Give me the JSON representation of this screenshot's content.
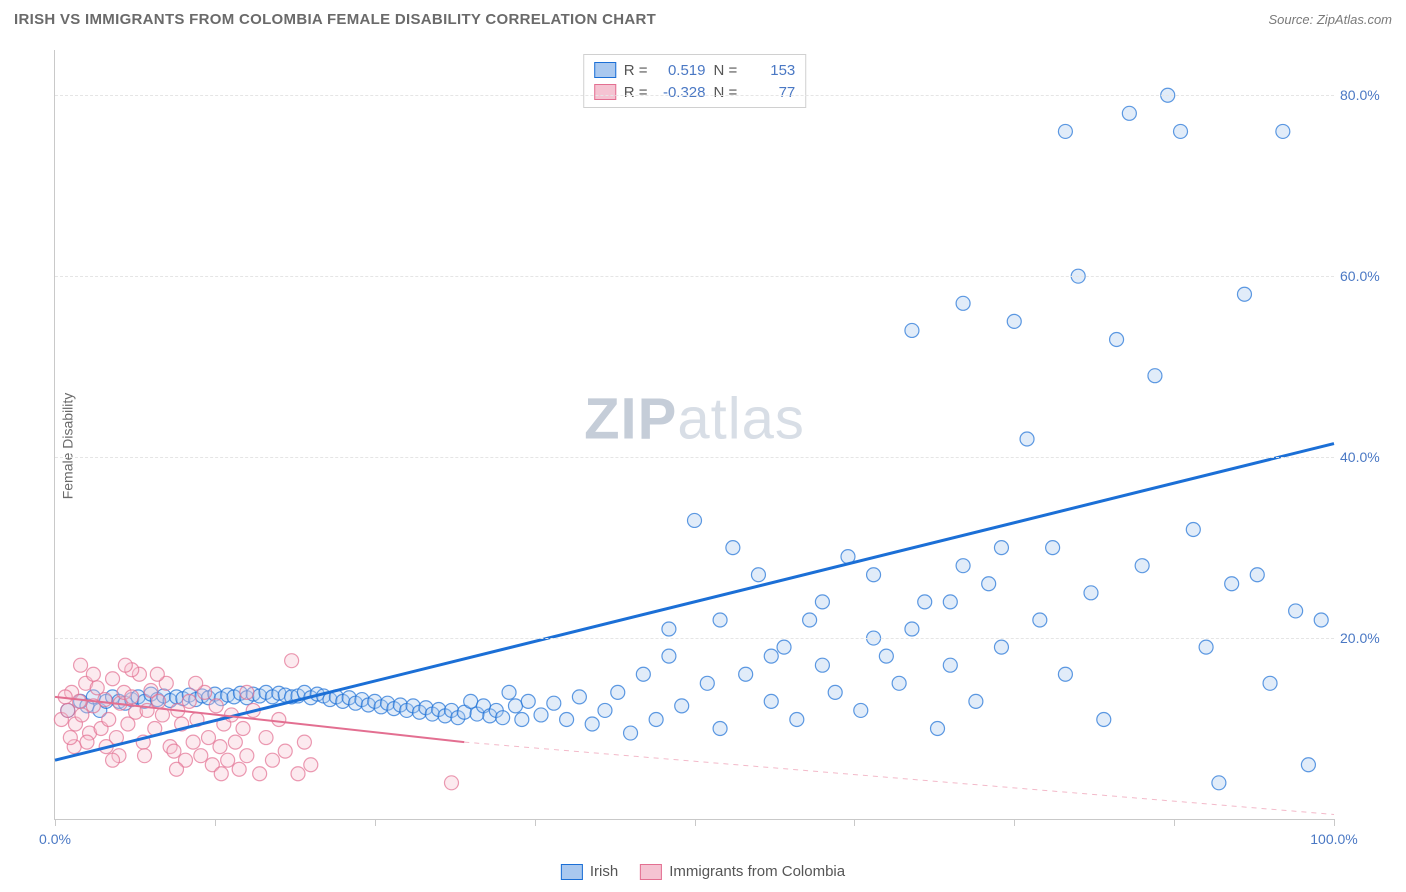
{
  "header": {
    "title": "IRISH VS IMMIGRANTS FROM COLOMBIA FEMALE DISABILITY CORRELATION CHART",
    "source": "Source: ZipAtlas.com"
  },
  "chart": {
    "type": "scatter",
    "ylabel": "Female Disability",
    "watermark_bold": "ZIP",
    "watermark_rest": "atlas",
    "xlim": [
      0,
      100
    ],
    "ylim": [
      0,
      85
    ],
    "xticks": [
      0,
      12.5,
      25,
      37.5,
      50,
      62.5,
      75,
      87.5,
      100
    ],
    "xtick_labels": {
      "0": "0.0%",
      "100": "100.0%"
    },
    "yticks": [
      20,
      40,
      60,
      80
    ],
    "ytick_labels": {
      "20": "20.0%",
      "40": "40.0%",
      "60": "60.0%",
      "80": "80.0%"
    },
    "background_color": "#ffffff",
    "grid_color": "#e5e5e5",
    "axis_color": "#c9c9c9",
    "marker_radius": 7,
    "marker_stroke_width": 1.2,
    "marker_fill_opacity": 0.35,
    "series": [
      {
        "name": "Irish",
        "color": "#1b6fd6",
        "fill": "#a9c8ef",
        "r_label": "R =",
        "r_value": "0.519",
        "n_label": "N =",
        "n_value": "153",
        "trend": {
          "x1": 0,
          "y1": 6.5,
          "x2": 100,
          "y2": 41.5,
          "width": 3,
          "dash": "0",
          "color": "#1b6fd6"
        },
        "points": [
          [
            1,
            12
          ],
          [
            2,
            13
          ],
          [
            2.5,
            12.5
          ],
          [
            3,
            13.5
          ],
          [
            3.5,
            12
          ],
          [
            4,
            13
          ],
          [
            4.5,
            13.5
          ],
          [
            5,
            13
          ],
          [
            5.5,
            12.8
          ],
          [
            6,
            13.2
          ],
          [
            6.5,
            13.5
          ],
          [
            7,
            13
          ],
          [
            7.5,
            13.8
          ],
          [
            8,
            13.2
          ],
          [
            8.5,
            13.6
          ],
          [
            9,
            13.1
          ],
          [
            9.5,
            13.5
          ],
          [
            10,
            13.3
          ],
          [
            10.5,
            13.7
          ],
          [
            11,
            13.2
          ],
          [
            11.5,
            13.6
          ],
          [
            12,
            13.4
          ],
          [
            12.5,
            13.8
          ],
          [
            13,
            13.3
          ],
          [
            13.5,
            13.7
          ],
          [
            14,
            13.5
          ],
          [
            14.5,
            13.9
          ],
          [
            15,
            13.4
          ],
          [
            15.5,
            13.8
          ],
          [
            16,
            13.6
          ],
          [
            16.5,
            14
          ],
          [
            17,
            13.5
          ],
          [
            17.5,
            13.9
          ],
          [
            18,
            13.7
          ],
          [
            18.5,
            13.5
          ],
          [
            19,
            13.6
          ],
          [
            19.5,
            14
          ],
          [
            20,
            13.4
          ],
          [
            20.5,
            13.8
          ],
          [
            21,
            13.6
          ],
          [
            21.5,
            13.2
          ],
          [
            22,
            13.5
          ],
          [
            22.5,
            13
          ],
          [
            23,
            13.4
          ],
          [
            23.5,
            12.8
          ],
          [
            24,
            13.2
          ],
          [
            24.5,
            12.6
          ],
          [
            25,
            13
          ],
          [
            25.5,
            12.4
          ],
          [
            26,
            12.8
          ],
          [
            26.5,
            12.2
          ],
          [
            27,
            12.6
          ],
          [
            27.5,
            12
          ],
          [
            28,
            12.5
          ],
          [
            28.5,
            11.8
          ],
          [
            29,
            12.3
          ],
          [
            29.5,
            11.6
          ],
          [
            30,
            12.1
          ],
          [
            30.5,
            11.4
          ],
          [
            31,
            12
          ],
          [
            31.5,
            11.2
          ],
          [
            32,
            11.8
          ],
          [
            32.5,
            13
          ],
          [
            33,
            11.6
          ],
          [
            33.5,
            12.5
          ],
          [
            34,
            11.4
          ],
          [
            34.5,
            12
          ],
          [
            35,
            11.2
          ],
          [
            35.5,
            14
          ],
          [
            36,
            12.5
          ],
          [
            36.5,
            11
          ],
          [
            37,
            13
          ],
          [
            38,
            11.5
          ],
          [
            39,
            12.8
          ],
          [
            40,
            11
          ],
          [
            41,
            13.5
          ],
          [
            42,
            10.5
          ],
          [
            43,
            12
          ],
          [
            44,
            14
          ],
          [
            45,
            9.5
          ],
          [
            46,
            16
          ],
          [
            47,
            11
          ],
          [
            48,
            18
          ],
          [
            49,
            12.5
          ],
          [
            50,
            33
          ],
          [
            51,
            15
          ],
          [
            52,
            10
          ],
          [
            53,
            30
          ],
          [
            54,
            16
          ],
          [
            55,
            27
          ],
          [
            56,
            13
          ],
          [
            57,
            19
          ],
          [
            58,
            11
          ],
          [
            59,
            22
          ],
          [
            60,
            17
          ],
          [
            61,
            14
          ],
          [
            62,
            29
          ],
          [
            63,
            12
          ],
          [
            64,
            20
          ],
          [
            65,
            18
          ],
          [
            66,
            15
          ],
          [
            67,
            21
          ],
          [
            68,
            24
          ],
          [
            69,
            10
          ],
          [
            70,
            17
          ],
          [
            71,
            28
          ],
          [
            72,
            13
          ],
          [
            73,
            26
          ],
          [
            74,
            19
          ],
          [
            75,
            55
          ],
          [
            76,
            42
          ],
          [
            77,
            22
          ],
          [
            78,
            30
          ],
          [
            79,
            16
          ],
          [
            80,
            60
          ],
          [
            81,
            25
          ],
          [
            82,
            11
          ],
          [
            83,
            53
          ],
          [
            84,
            78
          ],
          [
            85,
            28
          ],
          [
            86,
            49
          ],
          [
            87,
            80
          ],
          [
            88,
            76
          ],
          [
            89,
            32
          ],
          [
            90,
            19
          ],
          [
            91,
            4
          ],
          [
            92,
            26
          ],
          [
            93,
            58
          ],
          [
            94,
            27
          ],
          [
            95,
            15
          ],
          [
            96,
            76
          ],
          [
            97,
            23
          ],
          [
            98,
            6
          ],
          [
            99,
            22
          ],
          [
            79,
            76
          ],
          [
            71,
            57
          ],
          [
            67,
            54
          ],
          [
            64,
            27
          ],
          [
            60,
            24
          ],
          [
            56,
            18
          ],
          [
            52,
            22
          ],
          [
            48,
            21
          ],
          [
            74,
            30
          ],
          [
            70,
            24
          ]
        ]
      },
      {
        "name": "Immigrants from Colombia",
        "color": "#e36f91",
        "fill": "#f5c3d2",
        "r_label": "R =",
        "r_value": "-0.328",
        "n_label": "N =",
        "n_value": "77",
        "trend": {
          "x1": 0,
          "y1": 13.5,
          "x2": 32,
          "y2": 8.5,
          "width": 2,
          "dash": "0",
          "color": "#e36f91"
        },
        "trend_ext": {
          "x1": 32,
          "y1": 8.5,
          "x2": 100,
          "y2": 0.5,
          "width": 1,
          "dash": "5,5",
          "color": "#f3b9c9"
        },
        "points": [
          [
            0.5,
            11
          ],
          [
            1,
            12
          ],
          [
            1.3,
            14
          ],
          [
            1.6,
            10.5
          ],
          [
            1.9,
            13
          ],
          [
            2.1,
            11.5
          ],
          [
            2.4,
            15
          ],
          [
            2.7,
            9.5
          ],
          [
            3,
            12.5
          ],
          [
            3.3,
            14.5
          ],
          [
            3.6,
            10
          ],
          [
            3.9,
            13.2
          ],
          [
            4.2,
            11
          ],
          [
            4.5,
            15.5
          ],
          [
            4.8,
            9
          ],
          [
            5.1,
            12.8
          ],
          [
            5.4,
            14
          ],
          [
            5.7,
            10.5
          ],
          [
            6,
            13.5
          ],
          [
            6.3,
            11.8
          ],
          [
            6.6,
            16
          ],
          [
            6.9,
            8.5
          ],
          [
            7.2,
            12
          ],
          [
            7.5,
            14.2
          ],
          [
            7.8,
            10
          ],
          [
            8.1,
            13
          ],
          [
            8.4,
            11.5
          ],
          [
            8.7,
            15
          ],
          [
            9,
            8
          ],
          [
            9.3,
            7.5
          ],
          [
            9.6,
            12
          ],
          [
            9.9,
            10.5
          ],
          [
            10.2,
            6.5
          ],
          [
            10.5,
            13
          ],
          [
            10.8,
            8.5
          ],
          [
            11.1,
            11
          ],
          [
            11.4,
            7
          ],
          [
            11.7,
            14
          ],
          [
            12,
            9
          ],
          [
            12.3,
            6
          ],
          [
            12.6,
            12.5
          ],
          [
            12.9,
            8
          ],
          [
            13.2,
            10.5
          ],
          [
            13.5,
            6.5
          ],
          [
            13.8,
            11.5
          ],
          [
            14.1,
            8.5
          ],
          [
            14.4,
            5.5
          ],
          [
            14.7,
            10
          ],
          [
            15,
            7
          ],
          [
            15.5,
            12
          ],
          [
            16,
            5
          ],
          [
            16.5,
            9
          ],
          [
            17,
            6.5
          ],
          [
            17.5,
            11
          ],
          [
            18,
            7.5
          ],
          [
            18.5,
            17.5
          ],
          [
            19,
            5
          ],
          [
            19.5,
            8.5
          ],
          [
            20,
            6
          ],
          [
            2,
            17
          ],
          [
            3,
            16
          ],
          [
            4,
            8
          ],
          [
            5,
            7
          ],
          [
            6,
            16.5
          ],
          [
            7,
            7
          ],
          [
            8,
            16
          ],
          [
            1.5,
            8
          ],
          [
            2.5,
            8.5
          ],
          [
            0.8,
            13.5
          ],
          [
            1.2,
            9
          ],
          [
            4.5,
            6.5
          ],
          [
            5.5,
            17
          ],
          [
            31,
            4
          ],
          [
            11,
            15
          ],
          [
            13,
            5
          ],
          [
            15,
            14
          ],
          [
            9.5,
            5.5
          ]
        ]
      }
    ],
    "axis_label_color": "#4a78c4",
    "tick_label_fontsize": 14,
    "title_fontsize": 15,
    "ylabel_fontsize": 14
  },
  "legend": {
    "bottom_items": [
      "Irish",
      "Immigrants from Colombia"
    ]
  }
}
